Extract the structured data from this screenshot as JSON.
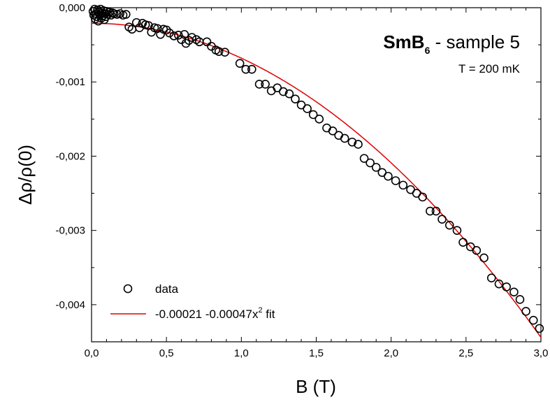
{
  "chart_data": {
    "type": "scatter",
    "xlabel": "B (T)",
    "ylabel": "Δρ/ρ(0)",
    "xlim": [
      0,
      3.0
    ],
    "ylim": [
      -0.0045,
      0.0
    ],
    "x_ticks": [
      "0,0",
      "0,5",
      "1,0",
      "1,5",
      "2,0",
      "2,5",
      "3,0"
    ],
    "x_tick_values": [
      0,
      0.5,
      1.0,
      1.5,
      2.0,
      2.5,
      3.0
    ],
    "y_ticks": [
      "0,000",
      "-0,001",
      "-0,002",
      "-0,003",
      "-0,004"
    ],
    "y_tick_values": [
      0,
      -0.001,
      -0.002,
      -0.003,
      -0.004
    ],
    "annotation": {
      "material": "SmB",
      "material_sub": "6",
      "sample": " - sample 5",
      "temperature": "T = 200 mK"
    },
    "legend": {
      "position": "bottom-left",
      "data_label": "data",
      "fit_label_pre": "-0.00021 -0.00047x",
      "fit_label_sup": "2",
      "fit_label_post": " fit"
    },
    "colors": {
      "data": "#000000",
      "fit": "#e00000"
    },
    "fit": {
      "a": -0.00021,
      "b": -0.00047
    },
    "series": [
      {
        "name": "data",
        "marker": "open-circle",
        "points": [
          [
            0.01,
            -5e-05
          ],
          [
            0.015,
            -0.0001
          ],
          [
            0.02,
            -2e-05
          ],
          [
            0.025,
            -0.00015
          ],
          [
            0.03,
            -8e-05
          ],
          [
            0.035,
            -0.00012
          ],
          [
            0.04,
            -3e-05
          ],
          [
            0.045,
            -0.00018
          ],
          [
            0.05,
            -6e-05
          ],
          [
            0.055,
            -0.0001
          ],
          [
            0.06,
            -2e-05
          ],
          [
            0.065,
            -0.00014
          ],
          [
            0.07,
            -7e-05
          ],
          [
            0.075,
            -0.00011
          ],
          [
            0.08,
            -4e-05
          ],
          [
            0.085,
            -0.00016
          ],
          [
            0.09,
            -8e-05
          ],
          [
            0.095,
            -0.00012
          ],
          [
            0.1,
            -5e-05
          ],
          [
            0.11,
            -9e-05
          ],
          [
            0.12,
            -6e-05
          ],
          [
            0.13,
            -0.0001
          ],
          [
            0.14,
            -7e-05
          ],
          [
            0.15,
            -8e-05
          ],
          [
            0.17,
            -9e-05
          ],
          [
            0.19,
            -8e-05
          ],
          [
            0.21,
            -0.0001
          ],
          [
            0.23,
            -9e-05
          ],
          [
            0.25,
            -0.00026
          ],
          [
            0.27,
            -0.00029
          ],
          [
            0.3,
            -0.0002
          ],
          [
            0.32,
            -0.00027
          ],
          [
            0.34,
            -0.00021
          ],
          [
            0.36,
            -0.00023
          ],
          [
            0.38,
            -0.00024
          ],
          [
            0.4,
            -0.00033
          ],
          [
            0.42,
            -0.00027
          ],
          [
            0.44,
            -0.00028
          ],
          [
            0.46,
            -0.00036
          ],
          [
            0.48,
            -0.00029
          ],
          [
            0.5,
            -0.0003
          ],
          [
            0.52,
            -0.00034
          ],
          [
            0.55,
            -0.00038
          ],
          [
            0.58,
            -0.00037
          ],
          [
            0.6,
            -0.00043
          ],
          [
            0.62,
            -0.00036
          ],
          [
            0.63,
            -0.00048
          ],
          [
            0.65,
            -0.00044
          ],
          [
            0.67,
            -0.0004
          ],
          [
            0.7,
            -0.00043
          ],
          [
            0.72,
            -0.00046
          ],
          [
            0.77,
            -0.00046
          ],
          [
            0.8,
            -0.00052
          ],
          [
            0.83,
            -0.00057
          ],
          [
            0.85,
            -0.00059
          ],
          [
            0.89,
            -0.0006
          ],
          [
            0.99,
            -0.00075
          ],
          [
            1.03,
            -0.00083
          ],
          [
            1.07,
            -0.00083
          ],
          [
            1.12,
            -0.00103
          ],
          [
            1.16,
            -0.00103
          ],
          [
            1.2,
            -0.00112
          ],
          [
            1.24,
            -0.00108
          ],
          [
            1.28,
            -0.00113
          ],
          [
            1.32,
            -0.00116
          ],
          [
            1.36,
            -0.00123
          ],
          [
            1.4,
            -0.00131
          ],
          [
            1.44,
            -0.00136
          ],
          [
            1.48,
            -0.00144
          ],
          [
            1.52,
            -0.0015
          ],
          [
            1.57,
            -0.00162
          ],
          [
            1.61,
            -0.00166
          ],
          [
            1.65,
            -0.00172
          ],
          [
            1.69,
            -0.00176
          ],
          [
            1.74,
            -0.00181
          ],
          [
            1.78,
            -0.00184
          ],
          [
            1.82,
            -0.00203
          ],
          [
            1.86,
            -0.00209
          ],
          [
            1.9,
            -0.00215
          ],
          [
            1.94,
            -0.00222
          ],
          [
            1.98,
            -0.00227
          ],
          [
            2.03,
            -0.00233
          ],
          [
            2.08,
            -0.00239
          ],
          [
            2.13,
            -0.00245
          ],
          [
            2.17,
            -0.0025
          ],
          [
            2.21,
            -0.00255
          ],
          [
            2.26,
            -0.00274
          ],
          [
            2.3,
            -0.00274
          ],
          [
            2.34,
            -0.00285
          ],
          [
            2.39,
            -0.00293
          ],
          [
            2.44,
            -0.003
          ],
          [
            2.48,
            -0.00316
          ],
          [
            2.53,
            -0.00322
          ],
          [
            2.57,
            -0.00327
          ],
          [
            2.62,
            -0.00337
          ],
          [
            2.67,
            -0.00364
          ],
          [
            2.72,
            -0.00372
          ],
          [
            2.77,
            -0.00376
          ],
          [
            2.82,
            -0.00383
          ],
          [
            2.86,
            -0.00393
          ],
          [
            2.9,
            -0.00409
          ],
          [
            2.95,
            -0.00421
          ],
          [
            2.99,
            -0.00432
          ]
        ]
      },
      {
        "name": "-0.00021 -0.00047x2 fit",
        "type": "line",
        "equation": "y = -0.00021 - 0.00047 x^2"
      }
    ]
  }
}
